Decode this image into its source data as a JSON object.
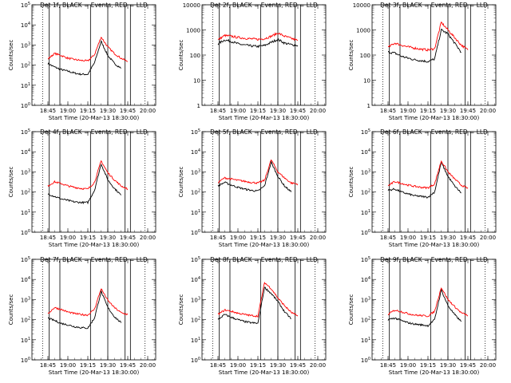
{
  "x_ticks": [
    "18:45",
    "19:00",
    "19:15",
    "19:30",
    "19:45",
    "20:00"
  ],
  "xlabel": "Start Time (20-Mar-13 18:30:00)",
  "ylabel": "Counts/sec",
  "event_markers": [
    "18:41",
    "18:46",
    "18:54",
    "19:17",
    "19:30",
    "19:43",
    "19:47",
    "19:58"
  ],
  "series_colors": {
    "events": "#000000",
    "lld": "#ff0000"
  },
  "chart_data": [
    {
      "type": "line",
      "title": "Det  1f, BLACK = Events, RED = LLD",
      "xlim": [
        "18:33",
        "20:06"
      ],
      "ylog": true,
      "ylim": [
        1,
        100000
      ],
      "ytick_labels": [
        "10^0",
        "10^1",
        "10^2",
        "10^3",
        "10^4",
        "10^5"
      ],
      "x": [
        "18:30",
        "18:35",
        "18:40",
        "18:45",
        "18:50",
        "18:55",
        "19:00",
        "19:05",
        "19:10",
        "19:15",
        "19:20",
        "19:25",
        "19:30",
        "19:35",
        "19:40",
        "19:45",
        "19:50",
        "19:55",
        "20:00"
      ],
      "series": [
        {
          "name": "BLACK = Events",
          "values": [
            null,
            null,
            null,
            120,
            80,
            60,
            50,
            40,
            35,
            35,
            130,
            1500,
            300,
            120,
            70,
            null,
            null,
            null,
            null
          ]
        },
        {
          "name": "RED = LLD",
          "values": [
            null,
            null,
            null,
            200,
            380,
            300,
            220,
            190,
            170,
            160,
            330,
            2500,
            800,
            380,
            220,
            150,
            null,
            null,
            null
          ]
        }
      ]
    },
    {
      "type": "line",
      "title": "Det  2f, BLACK = Events, RED = LLD",
      "xlim": [
        "18:33",
        "20:06"
      ],
      "ylog": true,
      "ylim": [
        1,
        10000
      ],
      "ytick_labels": [
        "1",
        "10",
        "100",
        "1000",
        "10000"
      ],
      "x": [
        "18:30",
        "18:35",
        "18:40",
        "18:45",
        "18:50",
        "18:55",
        "19:00",
        "19:05",
        "19:10",
        "19:15",
        "19:20",
        "19:25",
        "19:30",
        "19:35",
        "19:40",
        "19:45",
        "19:50",
        "19:55",
        "20:00"
      ],
      "series": [
        {
          "name": "BLACK = Events",
          "values": [
            null,
            null,
            null,
            280,
            400,
            350,
            280,
            250,
            230,
            220,
            240,
            320,
            420,
            300,
            260,
            240,
            null,
            null,
            null
          ]
        },
        {
          "name": "RED = LLD",
          "values": [
            null,
            null,
            null,
            400,
            600,
            560,
            500,
            470,
            440,
            420,
            450,
            560,
            750,
            560,
            460,
            380,
            null,
            null,
            null
          ]
        }
      ]
    },
    {
      "type": "line",
      "title": "Det  3f, BLACK = Events, RED = LLD",
      "xlim": [
        "18:33",
        "20:06"
      ],
      "ylog": true,
      "ylim": [
        1,
        10000
      ],
      "ytick_labels": [
        "1",
        "10",
        "100",
        "1000",
        "10000"
      ],
      "x": [
        "18:30",
        "18:35",
        "18:40",
        "18:45",
        "18:50",
        "18:55",
        "19:00",
        "19:05",
        "19:10",
        "19:15",
        "19:20",
        "19:25",
        "19:30",
        "19:35",
        "19:40",
        "19:45",
        "19:50",
        "19:55",
        "20:00"
      ],
      "series": [
        {
          "name": "BLACK = Events",
          "values": [
            null,
            null,
            null,
            130,
            120,
            90,
            75,
            65,
            60,
            55,
            70,
            1000,
            700,
            300,
            130,
            null,
            null,
            null,
            null
          ]
        },
        {
          "name": "RED = LLD",
          "values": [
            null,
            null,
            null,
            200,
            300,
            250,
            210,
            190,
            170,
            160,
            180,
            2000,
            1000,
            500,
            250,
            160,
            null,
            null,
            null
          ]
        }
      ]
    },
    {
      "type": "line",
      "title": "Det  4f, BLACK = Events, RED = LLD",
      "xlim": [
        "18:33",
        "20:06"
      ],
      "ylog": true,
      "ylim": [
        1,
        100000
      ],
      "ytick_labels": [
        "10^0",
        "10^1",
        "10^2",
        "10^3",
        "10^4",
        "10^5"
      ],
      "x": [
        "18:30",
        "18:35",
        "18:40",
        "18:45",
        "18:50",
        "18:55",
        "19:00",
        "19:05",
        "19:10",
        "19:15",
        "19:20",
        "19:25",
        "19:30",
        "19:35",
        "19:40",
        "19:45",
        "19:50",
        "19:55",
        "20:00"
      ],
      "series": [
        {
          "name": "BLACK = Events",
          "values": [
            null,
            null,
            null,
            80,
            60,
            45,
            38,
            32,
            30,
            30,
            120,
            2500,
            400,
            150,
            70,
            null,
            null,
            null,
            null
          ]
        },
        {
          "name": "RED = LLD",
          "values": [
            null,
            null,
            null,
            200,
            320,
            260,
            200,
            170,
            150,
            140,
            300,
            3500,
            900,
            400,
            200,
            140,
            null,
            null,
            null
          ]
        }
      ]
    },
    {
      "type": "line",
      "title": "Det  5f, BLACK = Events, RED = LLD",
      "xlim": [
        "18:33",
        "20:06"
      ],
      "ylog": true,
      "ylim": [
        1,
        100000
      ],
      "ytick_labels": [
        "10^0",
        "10^1",
        "10^2",
        "10^3",
        "10^4",
        "10^5"
      ],
      "x": [
        "18:30",
        "18:35",
        "18:40",
        "18:45",
        "18:50",
        "18:55",
        "19:00",
        "19:05",
        "19:10",
        "19:15",
        "19:20",
        "19:25",
        "19:30",
        "19:35",
        "19:40",
        "19:45",
        "19:50",
        "19:55",
        "20:00"
      ],
      "series": [
        {
          "name": "BLACK = Events",
          "values": [
            null,
            null,
            null,
            200,
            300,
            220,
            170,
            140,
            120,
            110,
            200,
            3000,
            600,
            200,
            100,
            null,
            null,
            null,
            null
          ]
        },
        {
          "name": "RED = LLD",
          "values": [
            null,
            null,
            null,
            300,
            500,
            440,
            380,
            340,
            300,
            280,
            380,
            4000,
            1000,
            500,
            280,
            250,
            null,
            null,
            null
          ]
        }
      ]
    },
    {
      "type": "line",
      "title": "Det  6f, BLACK = Events, RED = LLD",
      "xlim": [
        "18:33",
        "20:06"
      ],
      "ylog": true,
      "ylim": [
        1,
        100000
      ],
      "ytick_labels": [
        "10^0",
        "10^1",
        "10^2",
        "10^3",
        "10^4",
        "10^5"
      ],
      "x": [
        "18:30",
        "18:35",
        "18:40",
        "18:45",
        "18:50",
        "18:55",
        "19:00",
        "19:05",
        "19:10",
        "19:15",
        "19:20",
        "19:25",
        "19:30",
        "19:35",
        "19:40",
        "19:45",
        "19:50",
        "19:55",
        "20:00"
      ],
      "series": [
        {
          "name": "BLACK = Events",
          "values": [
            null,
            null,
            null,
            120,
            140,
            100,
            80,
            65,
            60,
            55,
            100,
            3000,
            600,
            200,
            90,
            null,
            null,
            null,
            null
          ]
        },
        {
          "name": "RED = LLD",
          "values": [
            null,
            null,
            null,
            200,
            330,
            270,
            220,
            190,
            170,
            160,
            250,
            3500,
            1000,
            450,
            220,
            150,
            null,
            null,
            null
          ]
        }
      ]
    },
    {
      "type": "line",
      "title": "Det  7f, BLACK = Events, RED = LLD",
      "xlim": [
        "18:33",
        "20:06"
      ],
      "ylog": true,
      "ylim": [
        1,
        100000
      ],
      "ytick_labels": [
        "10^0",
        "10^1",
        "10^2",
        "10^3",
        "10^4",
        "10^5"
      ],
      "x": [
        "18:30",
        "18:35",
        "18:40",
        "18:45",
        "18:50",
        "18:55",
        "19:00",
        "19:05",
        "19:10",
        "19:15",
        "19:20",
        "19:25",
        "19:30",
        "19:35",
        "19:40",
        "19:45",
        "19:50",
        "19:55",
        "20:00"
      ],
      "series": [
        {
          "name": "BLACK = Events",
          "values": [
            null,
            null,
            null,
            120,
            90,
            65,
            55,
            45,
            40,
            38,
            120,
            2500,
            400,
            140,
            70,
            null,
            null,
            null,
            null
          ]
        },
        {
          "name": "RED = LLD",
          "values": [
            null,
            null,
            null,
            200,
            400,
            320,
            240,
            200,
            180,
            170,
            330,
            3500,
            900,
            400,
            220,
            180,
            null,
            null,
            null
          ]
        }
      ]
    },
    {
      "type": "line",
      "title": "Det  8f, BLACK = Events, RED = LLD",
      "xlim": [
        "18:33",
        "20:06"
      ],
      "ylog": true,
      "ylim": [
        1,
        100000
      ],
      "ytick_labels": [
        "10^0",
        "10^1",
        "10^2",
        "10^3",
        "10^4",
        "10^5"
      ],
      "x": [
        "18:30",
        "18:35",
        "18:40",
        "18:45",
        "18:50",
        "18:55",
        "19:00",
        "19:05",
        "19:10",
        "19:15",
        "19:20",
        "19:25",
        "19:30",
        "19:35",
        "19:40",
        "19:45",
        "19:50",
        "19:55",
        "20:00"
      ],
      "series": [
        {
          "name": "BLACK = Events",
          "values": [
            null,
            null,
            null,
            100,
            180,
            130,
            100,
            80,
            70,
            65,
            4000,
            2000,
            800,
            250,
            110,
            null,
            null,
            null,
            null
          ]
        },
        {
          "name": "RED = LLD",
          "values": [
            null,
            null,
            null,
            180,
            300,
            260,
            210,
            180,
            160,
            150,
            7000,
            3500,
            1200,
            500,
            230,
            150,
            null,
            null,
            null
          ]
        }
      ]
    },
    {
      "type": "line",
      "title": "Det  9f, BLACK = Events, RED = LLD",
      "xlim": [
        "18:33",
        "20:06"
      ],
      "ylog": true,
      "ylim": [
        1,
        100000
      ],
      "ytick_labels": [
        "10^0",
        "10^1",
        "10^2",
        "10^3",
        "10^4",
        "10^5"
      ],
      "x": [
        "18:30",
        "18:35",
        "18:40",
        "18:45",
        "18:50",
        "18:55",
        "19:00",
        "19:05",
        "19:10",
        "19:15",
        "19:20",
        "19:25",
        "19:30",
        "19:35",
        "19:40",
        "19:45",
        "19:50",
        "19:55",
        "20:00"
      ],
      "series": [
        {
          "name": "BLACK = Events",
          "values": [
            null,
            null,
            null,
            100,
            120,
            90,
            70,
            60,
            55,
            50,
            100,
            3000,
            500,
            180,
            80,
            null,
            null,
            null,
            null
          ]
        },
        {
          "name": "RED = LLD",
          "values": [
            null,
            null,
            null,
            180,
            300,
            250,
            200,
            170,
            160,
            150,
            260,
            4000,
            1000,
            450,
            220,
            160,
            null,
            null,
            null
          ]
        }
      ]
    }
  ]
}
